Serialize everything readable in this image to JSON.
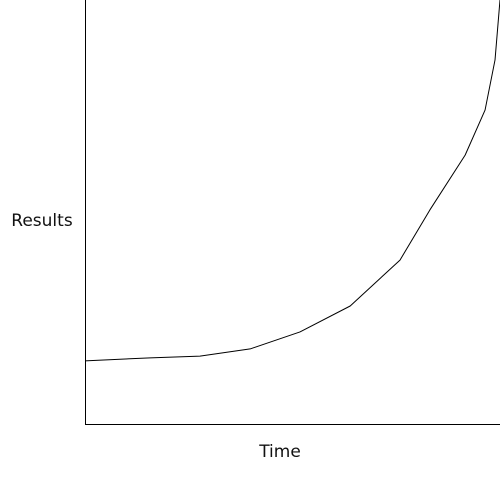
{
  "chart_data": {
    "type": "line",
    "x_label": "Time",
    "y_label": "Results",
    "x": [
      0,
      15.7,
      27.7,
      39.8,
      51.8,
      63.9,
      75.9,
      83.1,
      91.6,
      96.4,
      98.8,
      100
    ],
    "series": [
      {
        "color": "#000000",
        "values": [
          15.1,
          15.8,
          16.2,
          17.9,
          21.9,
          28.0,
          38.8,
          50.6,
          63.5,
          74.1,
          85.9,
          100
        ]
      }
    ],
    "xlim": [
      0,
      100
    ],
    "ylim": [
      0,
      100
    ]
  }
}
